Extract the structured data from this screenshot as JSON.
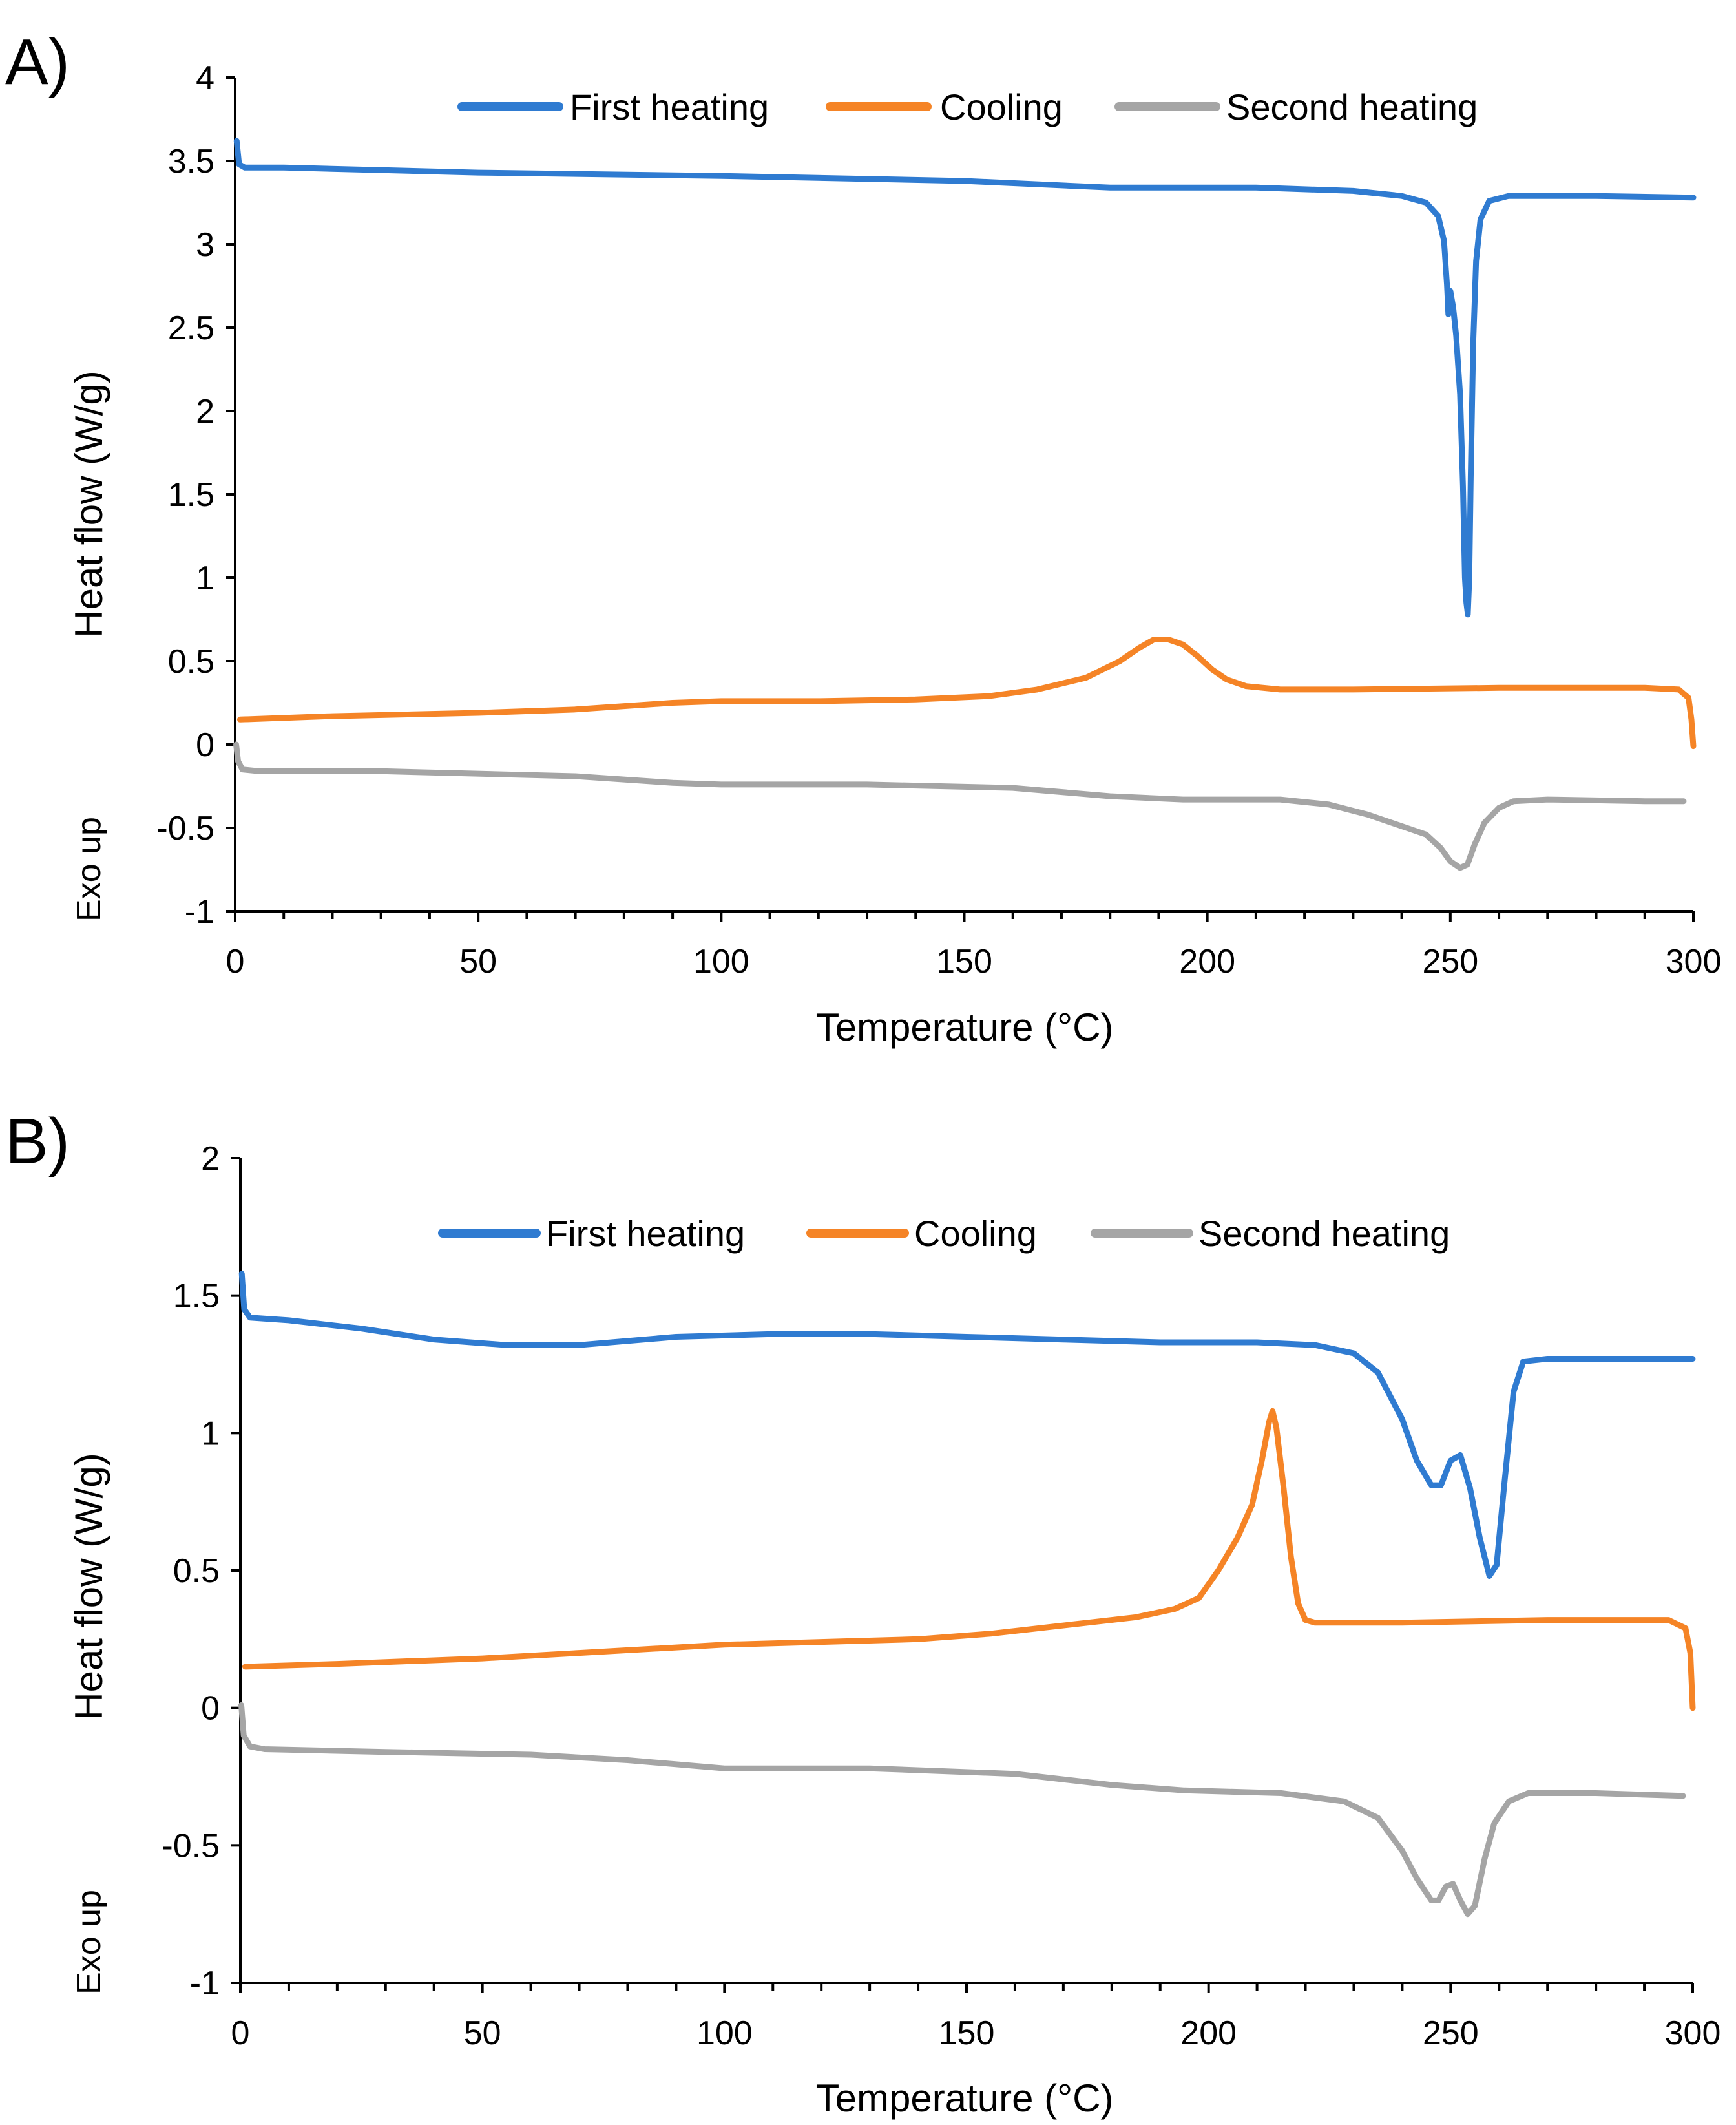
{
  "chart_data": [
    {
      "panel_label": "A)",
      "type": "line",
      "xlabel": "Temperature (°C)",
      "ylabel": "Heat flow (W/g)",
      "annotation": "Exo up",
      "xlim": [
        0,
        300
      ],
      "ylim": [
        -1,
        4
      ],
      "xticks": [
        0,
        50,
        100,
        150,
        200,
        250,
        300
      ],
      "yticks": [
        -1,
        -0.5,
        0,
        0.5,
        1,
        1.5,
        2,
        2.5,
        3,
        3.5,
        4
      ],
      "xtick_labels": [
        "0",
        "50",
        "100",
        "150",
        "200",
        "250",
        "300"
      ],
      "ytick_labels": [
        "-1",
        "-0.5",
        "0",
        "0.5",
        "1",
        "1.5",
        "2",
        "2.5",
        "3",
        "3.5",
        "4"
      ],
      "legend_position": "top-center",
      "series": [
        {
          "name": "First heating",
          "color": "#2F7BD1",
          "points": [
            [
              0.3,
              3.62
            ],
            [
              0.8,
              3.48
            ],
            [
              2,
              3.46
            ],
            [
              10,
              3.46
            ],
            [
              50,
              3.43
            ],
            [
              100,
              3.41
            ],
            [
              150,
              3.38
            ],
            [
              180,
              3.34
            ],
            [
              210,
              3.34
            ],
            [
              230,
              3.32
            ],
            [
              240,
              3.29
            ],
            [
              245,
              3.25
            ],
            [
              247.5,
              3.17
            ],
            [
              248.7,
              3.02
            ],
            [
              249.3,
              2.76
            ],
            [
              249.6,
              2.58
            ],
            [
              250.0,
              2.72
            ],
            [
              250.6,
              2.62
            ],
            [
              251.2,
              2.45
            ],
            [
              252.0,
              2.1
            ],
            [
              252.6,
              1.55
            ],
            [
              253.0,
              1.0
            ],
            [
              253.3,
              0.85
            ],
            [
              253.6,
              0.78
            ],
            [
              253.9,
              1.0
            ],
            [
              254.2,
              1.6
            ],
            [
              254.7,
              2.4
            ],
            [
              255.3,
              2.9
            ],
            [
              256.2,
              3.15
            ],
            [
              258,
              3.26
            ],
            [
              262,
              3.29
            ],
            [
              280,
              3.29
            ],
            [
              300,
              3.28
            ]
          ]
        },
        {
          "name": "Cooling",
          "color": "#F58426",
          "points": [
            [
              1,
              0.15
            ],
            [
              20,
              0.17
            ],
            [
              50,
              0.19
            ],
            [
              70,
              0.21
            ],
            [
              90,
              0.25
            ],
            [
              100,
              0.26
            ],
            [
              120,
              0.26
            ],
            [
              140,
              0.27
            ],
            [
              155,
              0.29
            ],
            [
              165,
              0.33
            ],
            [
              175,
              0.4
            ],
            [
              182,
              0.5
            ],
            [
              186,
              0.58
            ],
            [
              189,
              0.63
            ],
            [
              192,
              0.63
            ],
            [
              195,
              0.6
            ],
            [
              198,
              0.53
            ],
            [
              201,
              0.45
            ],
            [
              204,
              0.39
            ],
            [
              208,
              0.35
            ],
            [
              215,
              0.33
            ],
            [
              230,
              0.33
            ],
            [
              260,
              0.34
            ],
            [
              290,
              0.34
            ],
            [
              297,
              0.33
            ],
            [
              299,
              0.28
            ],
            [
              299.6,
              0.15
            ],
            [
              300,
              -0.01
            ]
          ]
        },
        {
          "name": "Second heating",
          "color": "#A5A5A5",
          "points": [
            [
              0.2,
              0.0
            ],
            [
              0.6,
              -0.1
            ],
            [
              1.5,
              -0.15
            ],
            [
              5,
              -0.16
            ],
            [
              30,
              -0.16
            ],
            [
              70,
              -0.19
            ],
            [
              90,
              -0.23
            ],
            [
              100,
              -0.24
            ],
            [
              130,
              -0.24
            ],
            [
              160,
              -0.26
            ],
            [
              180,
              -0.31
            ],
            [
              195,
              -0.33
            ],
            [
              215,
              -0.33
            ],
            [
              225,
              -0.36
            ],
            [
              233,
              -0.42
            ],
            [
              240,
              -0.49
            ],
            [
              245,
              -0.54
            ],
            [
              248,
              -0.62
            ],
            [
              250,
              -0.7
            ],
            [
              252,
              -0.74
            ],
            [
              253.5,
              -0.72
            ],
            [
              255,
              -0.6
            ],
            [
              257,
              -0.47
            ],
            [
              260,
              -0.38
            ],
            [
              263,
              -0.34
            ],
            [
              270,
              -0.33
            ],
            [
              290,
              -0.34
            ],
            [
              298,
              -0.34
            ]
          ]
        }
      ]
    },
    {
      "panel_label": "B)",
      "type": "line",
      "xlabel": "Temperature (°C)",
      "ylabel": "Heat flow (W/g)",
      "annotation": "Exo up",
      "xlim": [
        0,
        300
      ],
      "ylim": [
        -1,
        2
      ],
      "xticks": [
        0,
        50,
        100,
        150,
        200,
        250,
        300
      ],
      "yticks": [
        -1,
        -0.5,
        0,
        0.5,
        1,
        1.5,
        2
      ],
      "xtick_labels": [
        "0",
        "50",
        "100",
        "150",
        "200",
        "250",
        "300"
      ],
      "ytick_labels": [
        "-1",
        "-0.5",
        "0",
        "0.5",
        "1",
        "1.5",
        "2"
      ],
      "legend_position": "top-center",
      "series": [
        {
          "name": "First heating",
          "color": "#2F7BD1",
          "points": [
            [
              0.3,
              1.58
            ],
            [
              0.8,
              1.45
            ],
            [
              2,
              1.42
            ],
            [
              10,
              1.41
            ],
            [
              25,
              1.38
            ],
            [
              40,
              1.34
            ],
            [
              55,
              1.32
            ],
            [
              70,
              1.32
            ],
            [
              90,
              1.35
            ],
            [
              110,
              1.36
            ],
            [
              130,
              1.36
            ],
            [
              150,
              1.35
            ],
            [
              170,
              1.34
            ],
            [
              190,
              1.33
            ],
            [
              210,
              1.33
            ],
            [
              222,
              1.32
            ],
            [
              230,
              1.29
            ],
            [
              235,
              1.22
            ],
            [
              240,
              1.05
            ],
            [
              243,
              0.9
            ],
            [
              246,
              0.81
            ],
            [
              248,
              0.81
            ],
            [
              250,
              0.9
            ],
            [
              252,
              0.92
            ],
            [
              254,
              0.8
            ],
            [
              256,
              0.62
            ],
            [
              258,
              0.48
            ],
            [
              259.5,
              0.52
            ],
            [
              261,
              0.8
            ],
            [
              263,
              1.15
            ],
            [
              265,
              1.26
            ],
            [
              270,
              1.27
            ],
            [
              285,
              1.27
            ],
            [
              300,
              1.27
            ]
          ]
        },
        {
          "name": "Cooling",
          "color": "#F58426",
          "points": [
            [
              1,
              0.15
            ],
            [
              20,
              0.16
            ],
            [
              50,
              0.18
            ],
            [
              70,
              0.2
            ],
            [
              90,
              0.22
            ],
            [
              100,
              0.23
            ],
            [
              120,
              0.24
            ],
            [
              140,
              0.25
            ],
            [
              155,
              0.27
            ],
            [
              165,
              0.29
            ],
            [
              175,
              0.31
            ],
            [
              185,
              0.33
            ],
            [
              193,
              0.36
            ],
            [
              198,
              0.4
            ],
            [
              202,
              0.5
            ],
            [
              206,
              0.62
            ],
            [
              209,
              0.74
            ],
            [
              211,
              0.9
            ],
            [
              212.5,
              1.04
            ],
            [
              213.2,
              1.08
            ],
            [
              214,
              1.02
            ],
            [
              215.5,
              0.8
            ],
            [
              217,
              0.55
            ],
            [
              218.5,
              0.38
            ],
            [
              220,
              0.32
            ],
            [
              222,
              0.31
            ],
            [
              240,
              0.31
            ],
            [
              270,
              0.32
            ],
            [
              295,
              0.32
            ],
            [
              298.5,
              0.29
            ],
            [
              299.5,
              0.2
            ],
            [
              300,
              0.0
            ]
          ]
        },
        {
          "name": "Second heating",
          "color": "#A5A5A5",
          "points": [
            [
              0.2,
              0.01
            ],
            [
              0.7,
              -0.1
            ],
            [
              2,
              -0.14
            ],
            [
              5,
              -0.15
            ],
            [
              30,
              -0.16
            ],
            [
              60,
              -0.17
            ],
            [
              80,
              -0.19
            ],
            [
              100,
              -0.22
            ],
            [
              130,
              -0.22
            ],
            [
              160,
              -0.24
            ],
            [
              180,
              -0.28
            ],
            [
              195,
              -0.3
            ],
            [
              215,
              -0.31
            ],
            [
              228,
              -0.34
            ],
            [
              235,
              -0.4
            ],
            [
              240,
              -0.52
            ],
            [
              243,
              -0.62
            ],
            [
              246,
              -0.7
            ],
            [
              247.5,
              -0.7
            ],
            [
              249,
              -0.65
            ],
            [
              250.5,
              -0.64
            ],
            [
              252,
              -0.7
            ],
            [
              253.5,
              -0.75
            ],
            [
              255,
              -0.72
            ],
            [
              257,
              -0.55
            ],
            [
              259,
              -0.42
            ],
            [
              262,
              -0.34
            ],
            [
              266,
              -0.31
            ],
            [
              280,
              -0.31
            ],
            [
              298,
              -0.32
            ]
          ]
        }
      ]
    }
  ]
}
